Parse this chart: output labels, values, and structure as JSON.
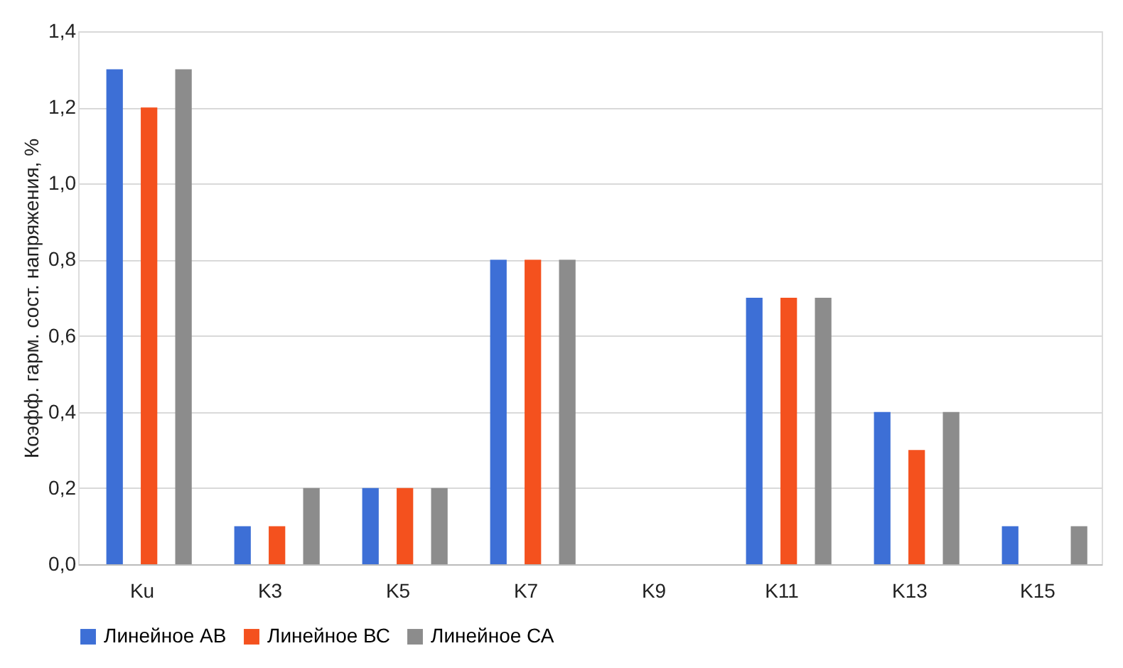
{
  "chart_data": {
    "type": "bar",
    "ylabel": "Коэфф. гарм. сост. напряжения, %",
    "categories": [
      "Ku",
      "K3",
      "K5",
      "K7",
      "K9",
      "K11",
      "K13",
      "K15"
    ],
    "series": [
      {
        "name": "Линейное АВ",
        "color": "#3d6fd6",
        "values": [
          1.3,
          0.1,
          0.2,
          0.8,
          0,
          0.7,
          0.4,
          0.1
        ]
      },
      {
        "name": "Линейное ВС",
        "color": "#f4511e",
        "values": [
          1.2,
          0.1,
          0.2,
          0.8,
          0,
          0.7,
          0.3,
          0
        ]
      },
      {
        "name": "Линейное СА",
        "color": "#8c8c8c",
        "values": [
          1.3,
          0.2,
          0.2,
          0.8,
          0,
          0.7,
          0.4,
          0.1
        ]
      }
    ],
    "ylim": [
      0,
      1.4
    ],
    "yticks": [
      {
        "value": 0,
        "label": "0,0"
      },
      {
        "value": 0.2,
        "label": "0,2"
      },
      {
        "value": 0.4,
        "label": "0,4"
      },
      {
        "value": 0.6,
        "label": "0,6"
      },
      {
        "value": 0.8,
        "label": "0,8"
      },
      {
        "value": 1.0,
        "label": "1,0"
      },
      {
        "value": 1.2,
        "label": "1,2"
      },
      {
        "value": 1.4,
        "label": "1,4"
      }
    ],
    "grid": "y",
    "legend": "bottom"
  }
}
